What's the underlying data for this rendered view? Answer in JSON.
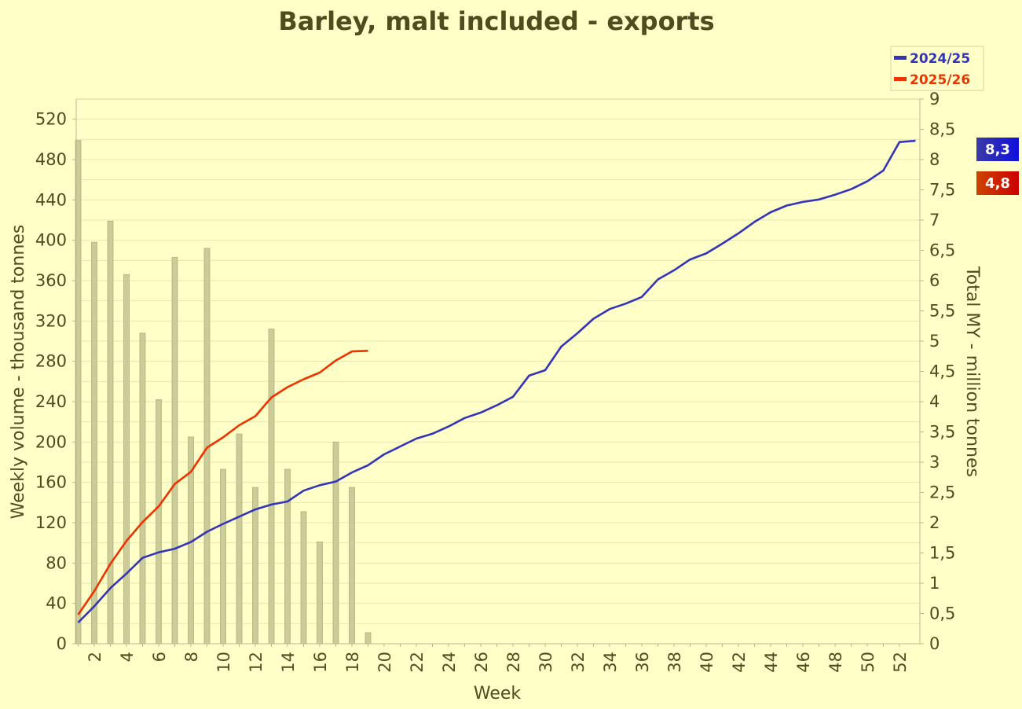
{
  "chart_data": {
    "type": "bar+line",
    "title": "Barley, malt included - exports",
    "xlabel": "Week",
    "ylabel_left": "Weekly volume - thousand tonnes",
    "ylabel_right": "Total MY - million tonnes",
    "y_left_lim": [
      0,
      540
    ],
    "y_left_ticks": [
      0,
      40,
      80,
      120,
      160,
      200,
      240,
      280,
      320,
      360,
      400,
      440,
      480,
      520
    ],
    "y_right_lim": [
      0,
      9
    ],
    "y_right_ticks": [
      "0",
      "0,5",
      "1",
      "1,5",
      "2",
      "2,5",
      "3",
      "3,5",
      "4",
      "4,5",
      "5",
      "5,5",
      "6",
      "6,5",
      "7",
      "7,5",
      "8",
      "8,5",
      "9"
    ],
    "x_ticks": [
      2,
      4,
      6,
      8,
      10,
      12,
      14,
      16,
      18,
      20,
      22,
      24,
      26,
      28,
      30,
      32,
      34,
      36,
      38,
      40,
      42,
      44,
      46,
      48,
      50,
      52
    ],
    "weeks": 52,
    "bars": {
      "series": "2025/26 weekly volume",
      "color": "#cccc99",
      "values": [
        499,
        398,
        419,
        366,
        308,
        242,
        383,
        205,
        392,
        173,
        208,
        155,
        312,
        173,
        131,
        101,
        200,
        155,
        11
      ]
    },
    "series": [
      {
        "name": "2024/25",
        "axis": "right",
        "color": "#3333bb",
        "values": [
          0.35,
          0.62,
          0.92,
          1.16,
          1.42,
          1.51,
          1.57,
          1.68,
          1.85,
          1.98,
          2.1,
          2.22,
          2.3,
          2.35,
          2.53,
          2.62,
          2.68,
          2.83,
          2.95,
          3.13,
          3.26,
          3.39,
          3.47,
          3.59,
          3.73,
          3.82,
          3.94,
          4.08,
          4.43,
          4.52,
          4.91,
          5.13,
          5.37,
          5.53,
          5.62,
          5.73,
          6.02,
          6.17,
          6.35,
          6.45,
          6.61,
          6.78,
          6.97,
          7.13,
          7.24,
          7.3,
          7.34,
          7.42,
          7.51,
          7.64,
          7.82,
          8.29,
          8.31
        ]
      },
      {
        "name": "2025/26",
        "axis": "right",
        "color": "#ee3300",
        "values": [
          0.48,
          0.87,
          1.32,
          1.7,
          2.01,
          2.27,
          2.64,
          2.84,
          3.24,
          3.41,
          3.61,
          3.76,
          4.07,
          4.24,
          4.37,
          4.48,
          4.68,
          4.83,
          4.84
        ]
      }
    ],
    "legend": {
      "position": "top-right",
      "entries": [
        "2024/25",
        "2025/26"
      ]
    },
    "end_badges": [
      {
        "label": "8,3",
        "color": "#1f1fcc"
      },
      {
        "label": "4,8",
        "color": "#cc2200"
      }
    ],
    "grid": true
  }
}
